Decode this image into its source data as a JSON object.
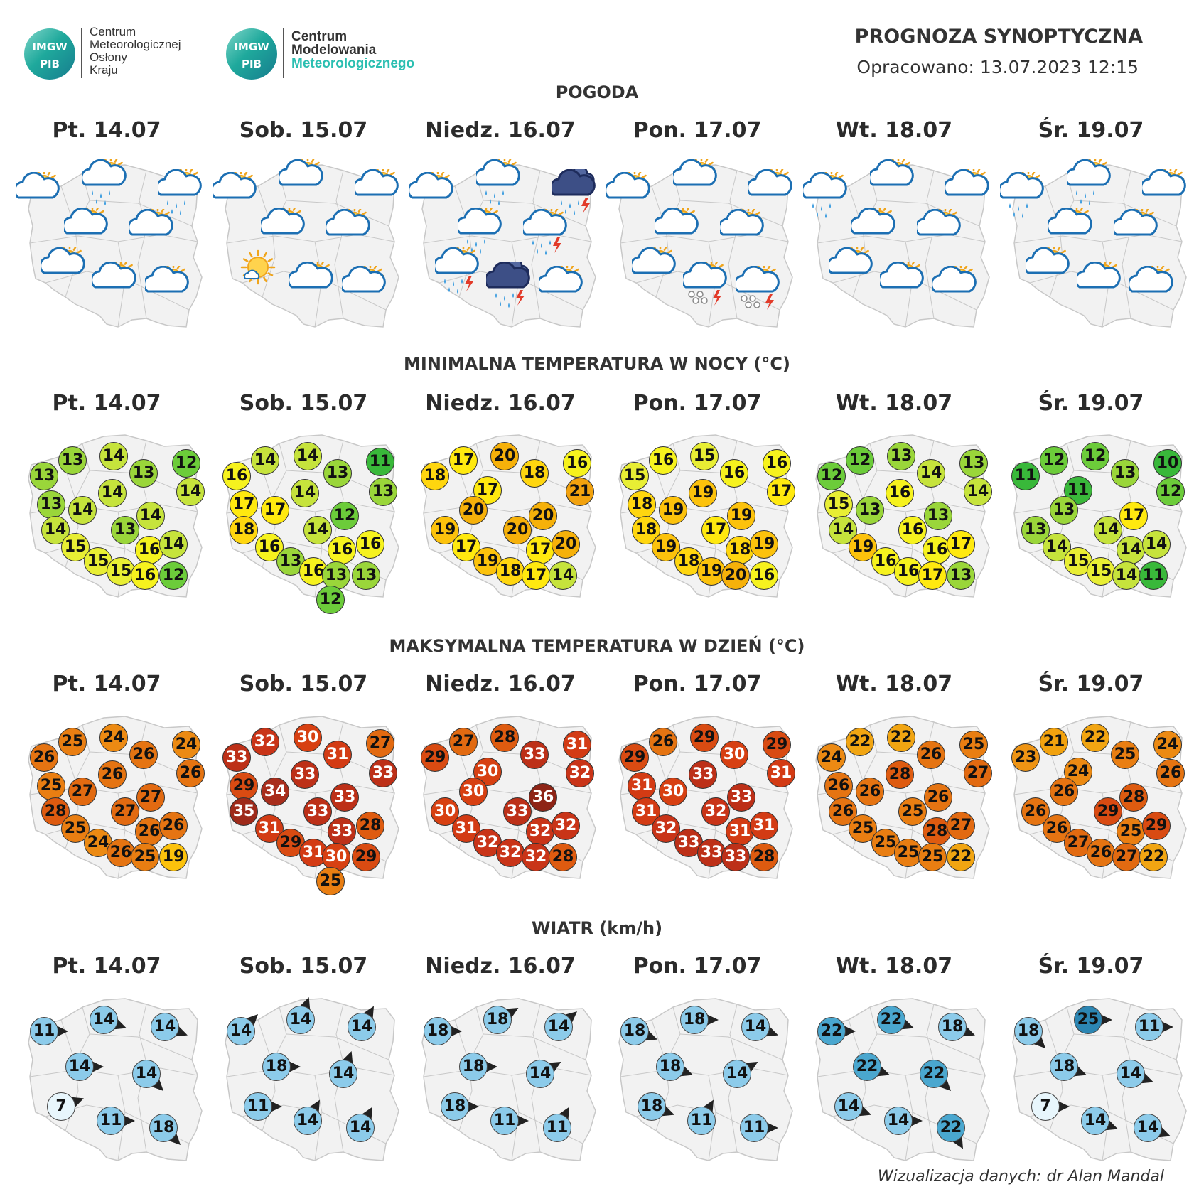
{
  "header": {
    "logo1": {
      "circle_text_top": "IMGW",
      "circle_text_bottom": "PIB",
      "lines": [
        "Centrum",
        "Meteorologicznej",
        "Osłony",
        "Kraju"
      ]
    },
    "logo2": {
      "circle_text_top": "IMGW",
      "circle_text_bottom": "PIB",
      "lines": [
        "Centrum",
        "Modelowania",
        "Meteorologicznego"
      ]
    },
    "title": "PROGNOZA SYNOPTYCZNA",
    "subtitle": "Opracowano: 13.07.2023 12:15"
  },
  "days": [
    "Pt. 14.07",
    "Sob. 15.07",
    "Niedz. 16.07",
    "Pon. 17.07",
    "Wt. 18.07",
    "Śr. 19.07"
  ],
  "sections": {
    "weather": "POGODA",
    "tmin": "MINIMALNA TEMPERATURA W NOCY (°C)",
    "tmax": "MAKSYMALNA TEMPERATURA W DZIEŃ (°C)",
    "wind": "WIATR (km/h)"
  },
  "colors": {
    "map_fill": "#f2f2f2",
    "map_border": "#c8c8c8",
    "wind_light": "#8ccbea",
    "wind_mid": "#4aa7cf",
    "wind_dark": "#2c86b3",
    "wind_calm": "#e8f6fc"
  },
  "weather_icons": [
    [
      "partly-cloudy",
      "partly-cloudy-rain",
      "partly-cloudy-rain",
      "partly-cloudy",
      "partly-cloudy",
      "partly-cloudy",
      "partly-cloudy",
      "partly-cloudy"
    ],
    [
      "partly-cloudy",
      "partly-cloudy",
      "partly-cloudy",
      "partly-cloudy",
      "partly-cloudy",
      "sunny",
      "partly-cloudy",
      "partly-cloudy"
    ],
    [
      "partly-cloudy",
      "partly-cloudy-rain",
      "thunderstorm",
      "partly-cloudy-rain",
      "partly-cloudy-storm",
      "partly-cloudy-storm",
      "thunderstorm",
      "partly-cloudy"
    ],
    [
      "partly-cloudy",
      "partly-cloudy",
      "partly-cloudy",
      "partly-cloudy",
      "partly-cloudy",
      "partly-cloudy",
      "hail-storm",
      "hail-storm"
    ],
    [
      "partly-cloudy-rain",
      "partly-cloudy",
      "partly-cloudy",
      "partly-cloudy",
      "partly-cloudy",
      "partly-cloudy",
      "partly-cloudy",
      "partly-cloudy"
    ],
    [
      "partly-cloudy-rain",
      "partly-cloudy-rain",
      "partly-cloudy",
      "partly-cloudy",
      "partly-cloudy",
      "partly-cloudy",
      "partly-cloudy",
      "partly-cloudy"
    ]
  ],
  "tmin": [
    [
      "13",
      "13",
      "14",
      "13",
      "12",
      "14",
      "13",
      "14",
      "14",
      "14",
      "14",
      "13",
      "15",
      "16",
      "14",
      "15",
      "15",
      "16",
      "12"
    ],
    [
      "16",
      "14",
      "14",
      "13",
      "11",
      "13",
      "17",
      "17",
      "14",
      "14",
      "18",
      "16",
      "12",
      "16",
      "16",
      "13",
      "16",
      "13",
      "13",
      "12"
    ],
    [
      "18",
      "17",
      "20",
      "18",
      "16",
      "21",
      "17",
      "20",
      "20",
      "19",
      "20",
      "17",
      "17",
      "20",
      "19",
      "18",
      "17",
      "14"
    ],
    [
      "15",
      "16",
      "15",
      "16",
      "16",
      "17",
      "18",
      "19",
      "19",
      "19",
      "18",
      "17",
      "19",
      "18",
      "19",
      "18",
      "19",
      "20",
      "16"
    ],
    [
      "12",
      "12",
      "13",
      "14",
      "13",
      "14",
      "15",
      "13",
      "16",
      "13",
      "14",
      "16",
      "19",
      "16",
      "17",
      "16",
      "16",
      "17",
      "13"
    ],
    [
      "11",
      "12",
      "12",
      "13",
      "10",
      "12",
      "11",
      "13",
      "17",
      "13",
      "14",
      "14",
      "14",
      "14",
      "15",
      "15",
      "14",
      "11"
    ]
  ],
  "tmax": [
    [
      "26",
      "25",
      "24",
      "26",
      "24",
      "26",
      "25",
      "27",
      "26",
      "27",
      "28",
      "27",
      "25",
      "26",
      "26",
      "24",
      "26",
      "25",
      "19"
    ],
    [
      "33",
      "32",
      "30",
      "31",
      "27",
      "33",
      "29",
      "34",
      "33",
      "33",
      "35",
      "31",
      "33",
      "28",
      "33",
      "29",
      "31",
      "30",
      "29",
      "25"
    ],
    [
      "29",
      "27",
      "28",
      "33",
      "31",
      "32",
      "30",
      "30",
      "36",
      "30",
      "33",
      "31",
      "32",
      "32",
      "32",
      "32",
      "32",
      "28"
    ],
    [
      "29",
      "26",
      "29",
      "30",
      "29",
      "31",
      "31",
      "30",
      "33",
      "33",
      "31",
      "32",
      "32",
      "31",
      "31",
      "33",
      "33",
      "33",
      "28"
    ],
    [
      "24",
      "22",
      "22",
      "26",
      "25",
      "27",
      "26",
      "26",
      "28",
      "26",
      "26",
      "25",
      "25",
      "28",
      "27",
      "25",
      "25",
      "25",
      "22"
    ],
    [
      "23",
      "21",
      "22",
      "25",
      "24",
      "26",
      "24",
      "26",
      "28",
      "26",
      "29",
      "26",
      "25",
      "29",
      "27",
      "26",
      "27",
      "22"
    ]
  ],
  "wind": [
    [
      "11",
      "14",
      "14",
      "14",
      "14",
      "7",
      "11",
      "18"
    ],
    [
      "14",
      "14",
      "14",
      "18",
      "14",
      "11",
      "14",
      "14"
    ],
    [
      "18",
      "18",
      "14",
      "18",
      "14",
      "18",
      "11",
      "11"
    ],
    [
      "18",
      "18",
      "14",
      "18",
      "14",
      "18",
      "11",
      "11"
    ],
    [
      "22",
      "22",
      "18",
      "22",
      "22",
      "14",
      "14",
      "22"
    ],
    [
      "18",
      "25",
      "11",
      "18",
      "14",
      "7",
      "14",
      "14"
    ]
  ],
  "credit": "Wizualizacja danych: dr Alan Mandal"
}
